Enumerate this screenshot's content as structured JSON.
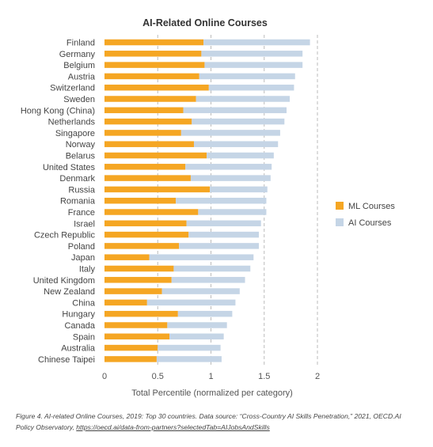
{
  "chart_data": {
    "type": "bar",
    "stacked": true,
    "orientation": "horizontal",
    "title": "AI-Related Online Courses",
    "xlabel": "Total Percentile (normalized per category)",
    "ylabel": "",
    "xlim": [
      0,
      2
    ],
    "xticks": [
      0,
      0.5,
      1,
      1.5,
      2
    ],
    "xtick_labels": [
      "0",
      "0.5",
      "1",
      "1.5",
      "2"
    ],
    "grid": "vertical dashed",
    "legend_position": "right",
    "categories": [
      "Finland",
      "Germany",
      "Belgium",
      "Austria",
      "Switzerland",
      "Sweden",
      "Hong Kong (China)",
      "Netherlands",
      "Singapore",
      "Norway",
      "Belarus",
      "United States",
      "Denmark",
      "Russia",
      "Romania",
      "France",
      "Israel",
      "Czech Republic",
      "Poland",
      "Japan",
      "Italy",
      "United Kingdom",
      "New Zealand",
      "China",
      "Hungary",
      "Canada",
      "Spain",
      "Australia",
      "Chinese Taipei"
    ],
    "series": [
      {
        "name": "ML Courses",
        "color": "#f5a623",
        "values": [
          0.93,
          0.91,
          0.94,
          0.89,
          0.98,
          0.86,
          0.74,
          0.82,
          0.72,
          0.84,
          0.96,
          0.76,
          0.81,
          0.99,
          0.67,
          0.88,
          0.77,
          0.79,
          0.7,
          0.42,
          0.65,
          0.63,
          0.54,
          0.4,
          0.69,
          0.59,
          0.61,
          0.5,
          0.49
        ]
      },
      {
        "name": "AI Courses",
        "color": "#c5d5e6",
        "values": [
          1.0,
          0.95,
          0.92,
          0.9,
          0.8,
          0.88,
          0.97,
          0.87,
          0.93,
          0.79,
          0.63,
          0.81,
          0.75,
          0.54,
          0.85,
          0.64,
          0.7,
          0.66,
          0.75,
          0.98,
          0.72,
          0.69,
          0.73,
          0.83,
          0.51,
          0.56,
          0.51,
          0.59,
          0.61
        ]
      }
    ]
  },
  "caption": {
    "text": "Figure 4. AI-related Online Courses, 2019: Top 30 countries. Data source: “Cross-Country AI Skills Penetration,” 2021, OECD.AI Policy Observatory, ",
    "link": "https://oecd.ai/data-from-partners?selectedTab=AIJobsAndSkills"
  }
}
